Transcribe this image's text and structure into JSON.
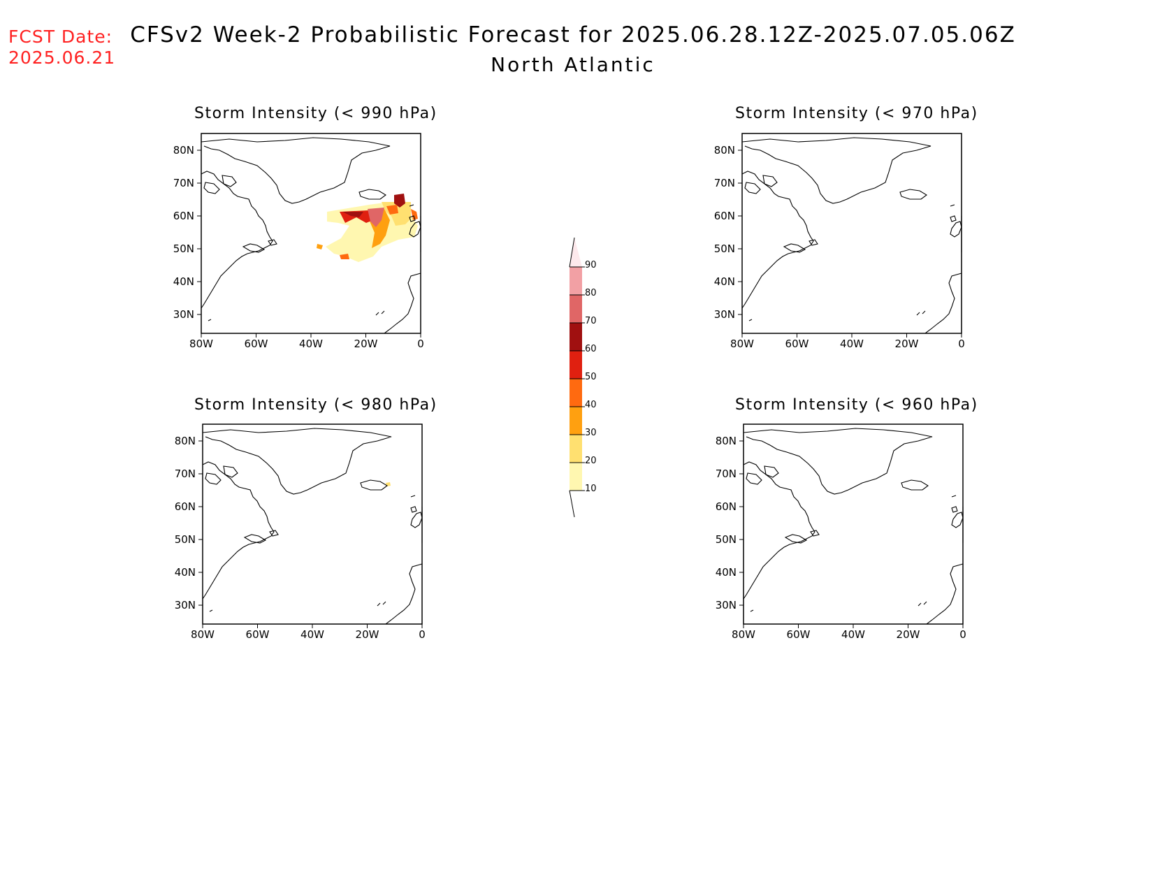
{
  "fcst": {
    "line1": "FCST Date:",
    "line2": "2025.06.21",
    "color": "#ff2020"
  },
  "title": "CFSv2 Week-2 Probabilistic Forecast for 2025.06.28.12Z-2025.07.05.06Z",
  "subtitle": "North Atlantic",
  "panels": [
    {
      "title": "Storm Intensity (< 990 hPa)",
      "has_data": true
    },
    {
      "title": "Storm Intensity (< 970 hPa)",
      "has_data": false
    },
    {
      "title": "Storm Intensity (< 980 hPa)",
      "has_data": false
    },
    {
      "title": "Storm Intensity (< 960 hPa)",
      "has_data": false
    }
  ],
  "lat_labels": [
    "80N",
    "70N",
    "60N",
    "50N",
    "40N",
    "30N"
  ],
  "lon_labels": [
    "80W",
    "60W",
    "40W",
    "20W",
    "0"
  ],
  "colorbar": {
    "labels": [
      "90",
      "80",
      "70",
      "60",
      "50",
      "40",
      "30",
      "20",
      "10"
    ],
    "colors": [
      "#fde9ec",
      "#f2a0a4",
      "#e06666",
      "#a01010",
      "#e02010",
      "#ff6a10",
      "#ffa010",
      "#ffe070",
      "#fff7b0"
    ]
  }
}
